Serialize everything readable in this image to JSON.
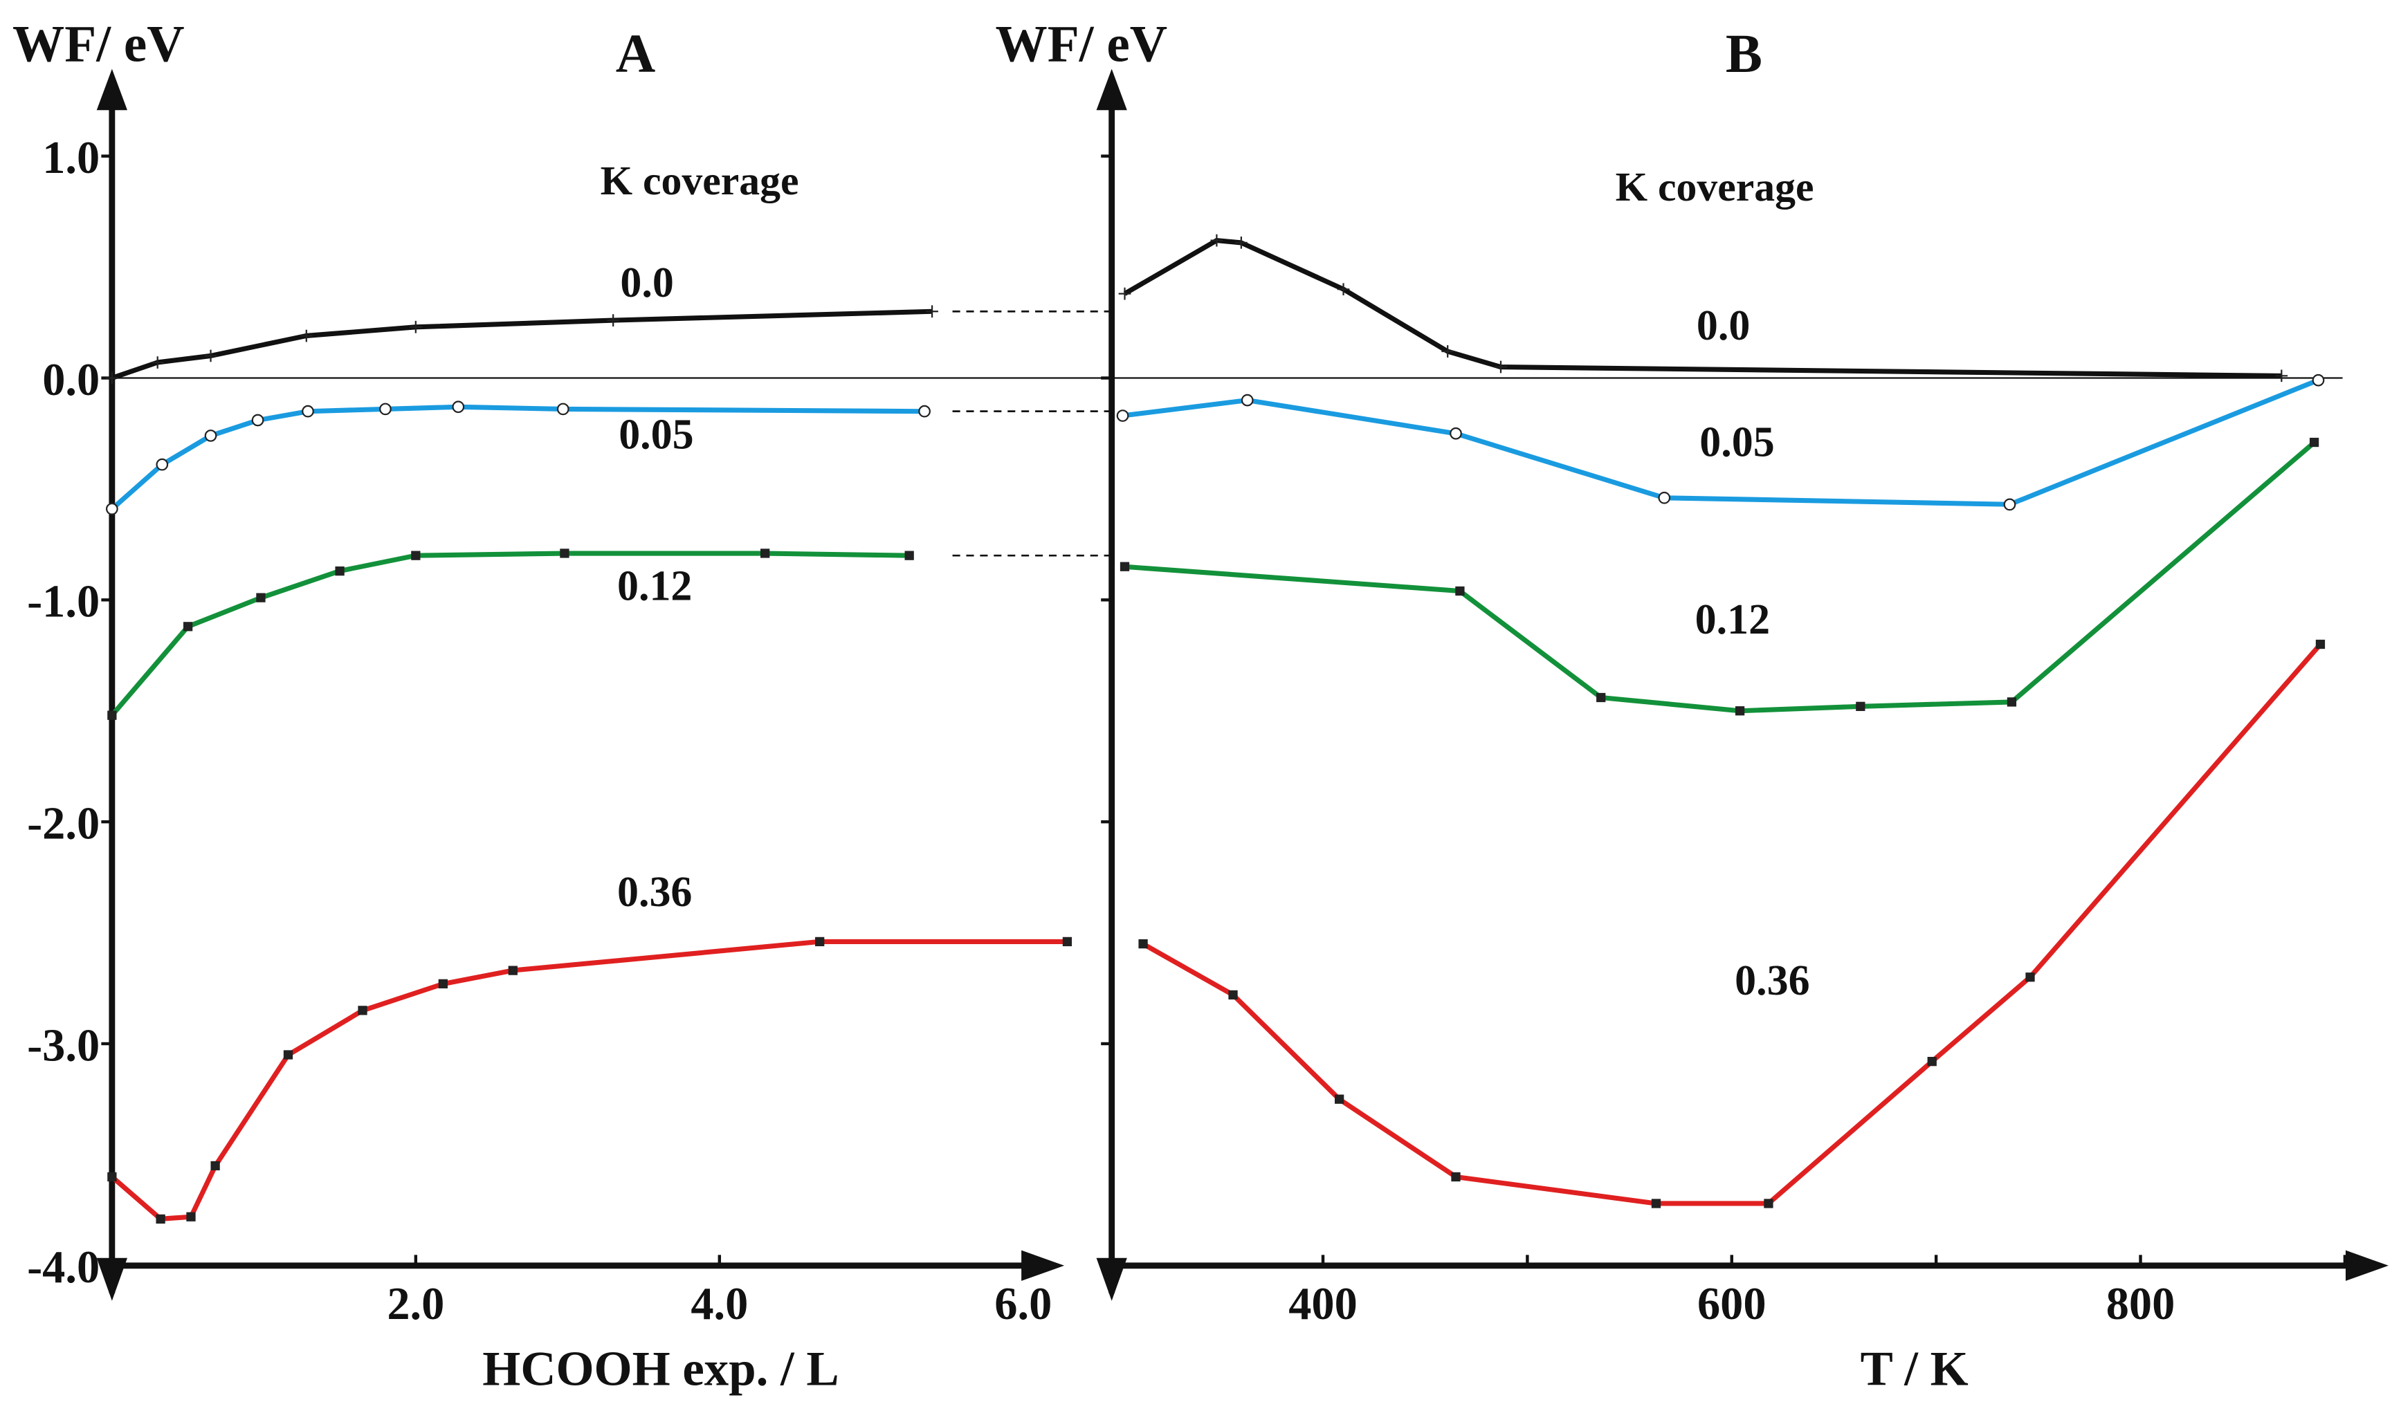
{
  "chart_data": [
    {
      "type": "line",
      "panel": "A",
      "ylabel": "WF/ eV",
      "xlabel": "HCOOH exp. / L",
      "legend_title": "K coverage",
      "xlim": [
        0,
        6.3
      ],
      "ylim": [
        -4.0,
        1.0
      ],
      "xticks": [
        2.0,
        4.0,
        6.0
      ],
      "xtick_labels": [
        "2.0",
        "4.0",
        "6.0"
      ],
      "yticks": [
        1.0,
        0.0,
        -1.0,
        -2.0,
        -3.0,
        -4.0
      ],
      "ytick_labels": [
        "1.0",
        "0.0",
        "-1.0",
        "-2.0",
        "-3.0",
        "-4.0"
      ],
      "series": [
        {
          "name": "0.0",
          "color": "#111111",
          "marker": "plus",
          "x": [
            0,
            0.3,
            0.65,
            1.28,
            2.0,
            3.3,
            5.4
          ],
          "y": [
            0.0,
            0.07,
            0.1,
            0.19,
            0.23,
            0.26,
            0.3
          ]
        },
        {
          "name": "0.05",
          "color": "#1a9be0",
          "marker": "circle",
          "x": [
            0,
            0.33,
            0.65,
            0.96,
            1.29,
            1.8,
            2.28,
            2.97,
            5.35
          ],
          "y": [
            -0.59,
            -0.39,
            -0.26,
            -0.19,
            -0.15,
            -0.14,
            -0.13,
            -0.14,
            -0.15
          ]
        },
        {
          "name": "0.12",
          "color": "#12913a",
          "marker": "square",
          "x": [
            0,
            0.5,
            0.98,
            1.5,
            2.0,
            2.98,
            4.3,
            5.25
          ],
          "y": [
            -1.52,
            -1.12,
            -0.99,
            -0.87,
            -0.8,
            -0.79,
            -0.79,
            -0.8
          ]
        },
        {
          "name": "0.36",
          "color": "#e02020",
          "marker": "square",
          "x": [
            0,
            0.32,
            0.52,
            0.68,
            1.16,
            1.65,
            2.18,
            2.64,
            4.66,
            6.29
          ],
          "y": [
            -3.6,
            -3.79,
            -3.78,
            -3.55,
            -3.05,
            -2.85,
            -2.73,
            -2.67,
            -2.54,
            -2.54
          ]
        }
      ]
    },
    {
      "type": "line",
      "panel": "B",
      "ylabel": "WF/ eV",
      "xlabel": "T / K",
      "legend_title": "K coverage",
      "xlim": [
        297,
        918
      ],
      "ylim": [
        -4.0,
        1.0
      ],
      "xticks": [
        400,
        600,
        800
      ],
      "xtick_labels": [
        "400",
        "600",
        "800"
      ],
      "series": [
        {
          "name": "0.0",
          "color": "#111111",
          "marker": "plus",
          "x": [
            303,
            348,
            360,
            410,
            461,
            487,
            869
          ],
          "y": [
            0.38,
            0.62,
            0.61,
            0.4,
            0.12,
            0.05,
            0.01
          ]
        },
        {
          "name": "0.05",
          "color": "#1a9be0",
          "marker": "circle",
          "x": [
            302,
            363,
            465,
            567,
            736,
            887
          ],
          "y": [
            -0.17,
            -0.1,
            -0.25,
            -0.54,
            -0.57,
            -0.01
          ]
        },
        {
          "name": "0.12",
          "color": "#12913a",
          "marker": "square",
          "x": [
            303,
            467,
            536,
            604,
            663,
            737,
            885
          ],
          "y": [
            -0.85,
            -0.96,
            -1.44,
            -1.5,
            -1.48,
            -1.46,
            -0.29
          ]
        },
        {
          "name": "0.36",
          "color": "#e02020",
          "marker": "square",
          "x": [
            312,
            356,
            408,
            465,
            563,
            618,
            698,
            746,
            888
          ],
          "y": [
            -2.55,
            -2.78,
            -3.25,
            -3.6,
            -3.72,
            -3.72,
            -3.08,
            -2.7,
            -1.2
          ]
        }
      ]
    }
  ]
}
